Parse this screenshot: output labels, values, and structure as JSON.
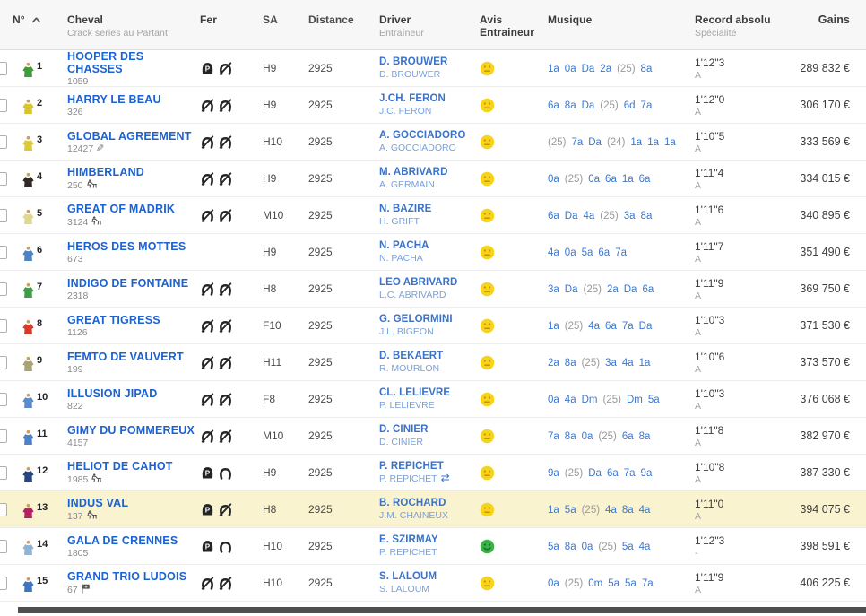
{
  "header": {
    "columns": {
      "num": "N°",
      "cheval": "Cheval",
      "cheval_sub": "Crack series au Partant",
      "fer": "Fer",
      "sa": "SA",
      "distance": "Distance",
      "driver": "Driver",
      "driver_sub": "Entraîneur",
      "avis": "Avis Entraineur",
      "musique": "Musique",
      "record": "Record absolu",
      "record_sub": "Spécialité",
      "gains": "Gains"
    }
  },
  "colors": {
    "link_blue": "#1b62d2",
    "driver_blue": "#3a72c9",
    "musique_blue": "#3a77d0",
    "row_highlight": "#faf3cf",
    "avis_yellow": "#f6d41c",
    "avis_yellow_features": "#c79204",
    "avis_green": "#3db24b",
    "avis_green_features": "#156b22",
    "header_bg": "#f7f7f7",
    "scrollbar": "#4f4f4f"
  },
  "rows": [
    {
      "num": "1",
      "name": "HOOPER DES CHASSES",
      "ref": "1059",
      "ref_icon": null,
      "silk_color": "#3f9c3a",
      "fer": [
        "plaque",
        "barefoot"
      ],
      "sa": "H9",
      "distance": "2925",
      "driver": "D. BROUWER",
      "trainer": "D. BROUWER",
      "driver_icon": null,
      "avis": "yellow",
      "musique": [
        "1a",
        "0a",
        "Da",
        "2a",
        "(25)",
        "8a"
      ],
      "record": "1'12\"3",
      "specialite": "A",
      "gains": "289 832 €",
      "highlight": false
    },
    {
      "num": "2",
      "name": "HARRY LE BEAU",
      "ref": "326",
      "ref_icon": null,
      "silk_color": "#d8c42c",
      "fer": [
        "barefoot",
        "barefoot"
      ],
      "sa": "H9",
      "distance": "2925",
      "driver": "J.CH. FERON",
      "trainer": "J.C. FERON",
      "driver_icon": null,
      "avis": "yellow",
      "musique": [
        "6a",
        "8a",
        "Da",
        "(25)",
        "6d",
        "7a"
      ],
      "record": "1'12\"0",
      "specialite": "A",
      "gains": "306 170 €",
      "highlight": false
    },
    {
      "num": "3",
      "name": "GLOBAL AGREEMENT",
      "ref": "12427",
      "ref_icon": "pencil",
      "silk_color": "#dcc93a",
      "fer": [
        "barefoot",
        "barefoot"
      ],
      "sa": "H10",
      "distance": "2925",
      "driver": "A. GOCCIADORO",
      "trainer": "A. GOCCIADORO",
      "driver_icon": null,
      "avis": "yellow",
      "musique": [
        "(25)",
        "7a",
        "Da",
        "(24)",
        "1a",
        "1a",
        "1a"
      ],
      "record": "1'10\"5",
      "specialite": "A",
      "gains": "333 569 €",
      "highlight": false
    },
    {
      "num": "4",
      "name": "HIMBERLAND",
      "ref": "250",
      "ref_icon": "rider",
      "silk_color": "#2e2a25",
      "fer": [
        "barefoot",
        "barefoot"
      ],
      "sa": "H9",
      "distance": "2925",
      "driver": "M. ABRIVARD",
      "trainer": "A. GERMAIN",
      "driver_icon": null,
      "avis": "yellow",
      "musique": [
        "0a",
        "(25)",
        "0a",
        "6a",
        "1a",
        "6a"
      ],
      "record": "1'11\"4",
      "specialite": "A",
      "gains": "334 015 €",
      "highlight": false
    },
    {
      "num": "5",
      "name": "GREAT OF MADRIK",
      "ref": "3124",
      "ref_icon": "rider",
      "silk_color": "#ded98c",
      "fer": [
        "barefoot",
        "barefoot"
      ],
      "sa": "M10",
      "distance": "2925",
      "driver": "N. BAZIRE",
      "trainer": "H. GRIFT",
      "driver_icon": null,
      "avis": "yellow",
      "musique": [
        "6a",
        "Da",
        "4a",
        "(25)",
        "3a",
        "8a"
      ],
      "record": "1'11\"6",
      "specialite": "A",
      "gains": "340 895 €",
      "highlight": false
    },
    {
      "num": "6",
      "name": "HEROS DES MOTTES",
      "ref": "673",
      "ref_icon": null,
      "silk_color": "#4d82c6",
      "fer": [],
      "sa": "H9",
      "distance": "2925",
      "driver": "N. PACHA",
      "trainer": "N. PACHA",
      "driver_icon": null,
      "avis": "yellow",
      "musique": [
        "4a",
        "0a",
        "5a",
        "6a",
        "7a"
      ],
      "record": "1'11\"7",
      "specialite": "A",
      "gains": "351 490 €",
      "highlight": false
    },
    {
      "num": "7",
      "name": "INDIGO DE FONTAINE",
      "ref": "2318",
      "ref_icon": null,
      "silk_color": "#3f9c46",
      "fer": [
        "barefoot",
        "barefoot"
      ],
      "sa": "H8",
      "distance": "2925",
      "driver": "LEO ABRIVARD",
      "trainer": "L.C. ABRIVARD",
      "driver_icon": null,
      "avis": "yellow",
      "musique": [
        "3a",
        "Da",
        "(25)",
        "2a",
        "Da",
        "6a"
      ],
      "record": "1'11\"9",
      "specialite": "A",
      "gains": "369 750 €",
      "highlight": false
    },
    {
      "num": "8",
      "name": "GREAT TIGRESS",
      "ref": "1126",
      "ref_icon": null,
      "silk_color": "#d63a2a",
      "fer": [
        "barefoot",
        "barefoot"
      ],
      "sa": "F10",
      "distance": "2925",
      "driver": "G. GELORMINI",
      "trainer": "J.L. BIGEON",
      "driver_icon": null,
      "avis": "yellow",
      "musique": [
        "1a",
        "(25)",
        "4a",
        "6a",
        "7a",
        "Da"
      ],
      "record": "1'10\"3",
      "specialite": "A",
      "gains": "371 530 €",
      "highlight": false
    },
    {
      "num": "9",
      "name": "FEMTO DE VAUVERT",
      "ref": "199",
      "ref_icon": null,
      "silk_color": "#a8a375",
      "fer": [
        "barefoot",
        "barefoot"
      ],
      "sa": "H11",
      "distance": "2925",
      "driver": "D. BEKAERT",
      "trainer": "R. MOURLON",
      "driver_icon": null,
      "avis": "yellow",
      "musique": [
        "2a",
        "8a",
        "(25)",
        "3a",
        "4a",
        "1a"
      ],
      "record": "1'10\"6",
      "specialite": "A",
      "gains": "373 570 €",
      "highlight": false
    },
    {
      "num": "10",
      "name": "ILLUSION JIPAD",
      "ref": "822",
      "ref_icon": null,
      "silk_color": "#5b8cc9",
      "fer": [
        "barefoot",
        "barefoot"
      ],
      "sa": "F8",
      "distance": "2925",
      "driver": "CL. LELIEVRE",
      "trainer": "P. LELIEVRE",
      "driver_icon": null,
      "avis": "yellow",
      "musique": [
        "0a",
        "4a",
        "Dm",
        "(25)",
        "Dm",
        "5a"
      ],
      "record": "1'10\"3",
      "specialite": "A",
      "gains": "376 068 €",
      "highlight": false
    },
    {
      "num": "11",
      "name": "GIMY DU POMMEREUX",
      "ref": "4157",
      "ref_icon": null,
      "silk_color": "#4d82c6",
      "fer": [
        "barefoot",
        "barefoot"
      ],
      "sa": "M10",
      "distance": "2925",
      "driver": "D. CINIER",
      "trainer": "D. CINIER",
      "driver_icon": null,
      "avis": "yellow",
      "musique": [
        "7a",
        "8a",
        "0a",
        "(25)",
        "6a",
        "8a"
      ],
      "record": "1'11\"8",
      "specialite": "A",
      "gains": "382 970 €",
      "highlight": false
    },
    {
      "num": "12",
      "name": "HELIOT DE CAHOT",
      "ref": "1985",
      "ref_icon": "rider",
      "silk_color": "#27457f",
      "fer": [
        "plaque",
        "shoe"
      ],
      "sa": "H9",
      "distance": "2925",
      "driver": "P. REPICHET",
      "trainer": "P. REPICHET",
      "driver_icon": "swap",
      "avis": "yellow",
      "musique": [
        "9a",
        "(25)",
        "Da",
        "6a",
        "7a",
        "9a"
      ],
      "record": "1'10\"8",
      "specialite": "A",
      "gains": "387 330 €",
      "highlight": false
    },
    {
      "num": "13",
      "name": "INDUS VAL",
      "ref": "137",
      "ref_icon": "rider",
      "silk_color": "#b51f62",
      "fer": [
        "plaque",
        "barefoot"
      ],
      "sa": "H8",
      "distance": "2925",
      "driver": "B. ROCHARD",
      "trainer": "J.M. CHAINEUX",
      "driver_icon": null,
      "avis": "yellow",
      "musique": [
        "1a",
        "5a",
        "(25)",
        "4a",
        "8a",
        "4a"
      ],
      "record": "1'11\"0",
      "specialite": "A",
      "gains": "394 075 €",
      "highlight": true
    },
    {
      "num": "14",
      "name": "GALA DE CRENNES",
      "ref": "1805",
      "ref_icon": null,
      "silk_color": "#8fb3d2",
      "fer": [
        "plaque",
        "shoe"
      ],
      "sa": "H10",
      "distance": "2925",
      "driver": "E. SZIRMAY",
      "trainer": "P. REPICHET",
      "driver_icon": null,
      "avis": "green",
      "musique": [
        "5a",
        "8a",
        "0a",
        "(25)",
        "5a",
        "4a"
      ],
      "record": "1'12\"3",
      "specialite": "-",
      "gains": "398 591 €",
      "highlight": false
    },
    {
      "num": "15",
      "name": "GRAND TRIO LUDOIS",
      "ref": "67",
      "ref_icon": "flag",
      "silk_color": "#3f74c2",
      "fer": [
        "barefoot",
        "barefoot"
      ],
      "sa": "H10",
      "distance": "2925",
      "driver": "S. LALOUM",
      "trainer": "S. LALOUM",
      "driver_icon": null,
      "avis": "yellow",
      "musique": [
        "0a",
        "(25)",
        "0m",
        "5a",
        "5a",
        "7a"
      ],
      "record": "1'11\"9",
      "specialite": "A",
      "gains": "406 225 €",
      "highlight": false
    }
  ]
}
